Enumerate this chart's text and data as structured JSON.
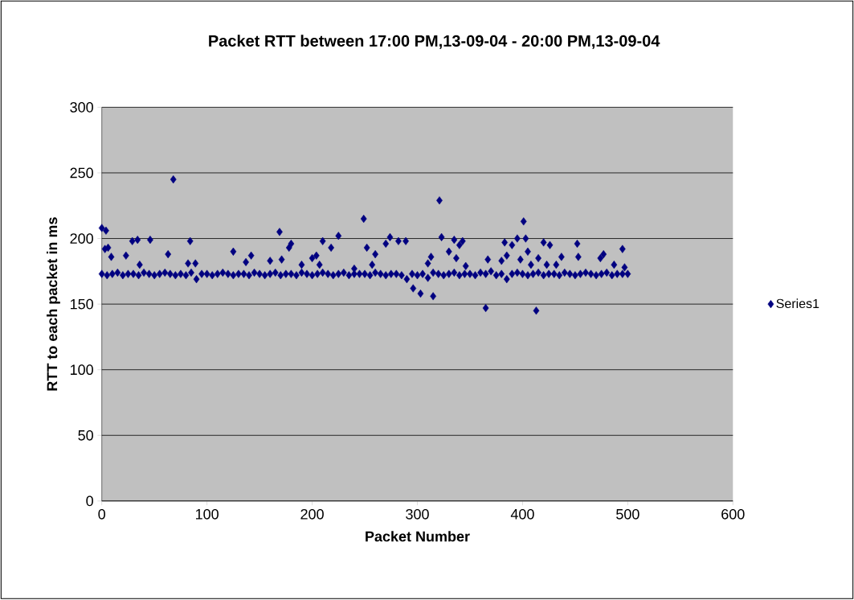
{
  "chart_data": {
    "type": "scatter",
    "title": "Packet RTT between 17:00 PM,13-09-04 - 20:00 PM,13-09-04",
    "xlabel": "Packet Number",
    "ylabel": "RTT to each packet in ms",
    "x": [
      0,
      5,
      10,
      15,
      20,
      25,
      30,
      35,
      40,
      45,
      50,
      55,
      60,
      65,
      70,
      75,
      80,
      85,
      90,
      95,
      100,
      105,
      110,
      115,
      120,
      125,
      130,
      135,
      140,
      145,
      150,
      155,
      160,
      165,
      170,
      175,
      180,
      185,
      190,
      195,
      200,
      205,
      210,
      215,
      220,
      225,
      230,
      235,
      240,
      245,
      250,
      255,
      260,
      265,
      270,
      275,
      280,
      285,
      290,
      295,
      300,
      305,
      310,
      315,
      320,
      325,
      330,
      335,
      340,
      345,
      350,
      355,
      360,
      365,
      370,
      375,
      380,
      385,
      390,
      395,
      400,
      405,
      410,
      415,
      420,
      425,
      430,
      435,
      440,
      445,
      450,
      455,
      460,
      465,
      470,
      475,
      480,
      485,
      490,
      495,
      500,
      0,
      4,
      3,
      6,
      9,
      23,
      29,
      34,
      36,
      46,
      63,
      68,
      82,
      84,
      89,
      125,
      137,
      142,
      160,
      169,
      171,
      178,
      180,
      190,
      200,
      204,
      207,
      210,
      218,
      225,
      240,
      249,
      252,
      257,
      260,
      270,
      274,
      282,
      289,
      296,
      303,
      315,
      310,
      313,
      321,
      323,
      330,
      335,
      337,
      340,
      343,
      346,
      365,
      367,
      380,
      383,
      385,
      390,
      395,
      398,
      401,
      403,
      405,
      408,
      413,
      415,
      420,
      423,
      426,
      432,
      437,
      452,
      453,
      474,
      477,
      487,
      495,
      497
    ],
    "series": [
      {
        "name": "Series1",
        "color": "#000080",
        "values": [
          173,
          172,
          173,
          174,
          172,
          173,
          173,
          172,
          174,
          173,
          172,
          173,
          174,
          173,
          172,
          173,
          172,
          174,
          169,
          173,
          173,
          172,
          173,
          174,
          173,
          172,
          173,
          173,
          172,
          174,
          173,
          172,
          173,
          174,
          172,
          173,
          173,
          172,
          174,
          173,
          172,
          173,
          174,
          173,
          172,
          173,
          174,
          172,
          173,
          173,
          173,
          172,
          174,
          173,
          172,
          173,
          173,
          172,
          169,
          173,
          172,
          173,
          170,
          174,
          173,
          172,
          173,
          174,
          172,
          173,
          173,
          172,
          174,
          173,
          175,
          172,
          173,
          169,
          173,
          174,
          173,
          172,
          173,
          174,
          172,
          173,
          173,
          172,
          174,
          173,
          172,
          173,
          174,
          173,
          172,
          173,
          174,
          172,
          173,
          173,
          173,
          208,
          206,
          192,
          193,
          186,
          187,
          198,
          199,
          180,
          199,
          188,
          245,
          181,
          198,
          181,
          190,
          182,
          187,
          183,
          205,
          184,
          193,
          196,
          180,
          185,
          187,
          180,
          198,
          193,
          202,
          177,
          215,
          193,
          180,
          188,
          196,
          201,
          198,
          198,
          162,
          158,
          156,
          181,
          186,
          229,
          201,
          190,
          199,
          185,
          195,
          198,
          179,
          147,
          184,
          183,
          197,
          187,
          195,
          200,
          184,
          213,
          200,
          190,
          180,
          145,
          185,
          197,
          180,
          195,
          180,
          186,
          196,
          186,
          185,
          188,
          180,
          192,
          178
        ]
      }
    ],
    "xlim": [
      0,
      600
    ],
    "ylim": [
      0,
      300
    ],
    "xticks": [
      0,
      100,
      200,
      300,
      400,
      500,
      600
    ],
    "yticks": [
      0,
      50,
      100,
      150,
      200,
      250,
      300
    ],
    "grid": "y",
    "legend": "right",
    "marker": "diamond"
  }
}
